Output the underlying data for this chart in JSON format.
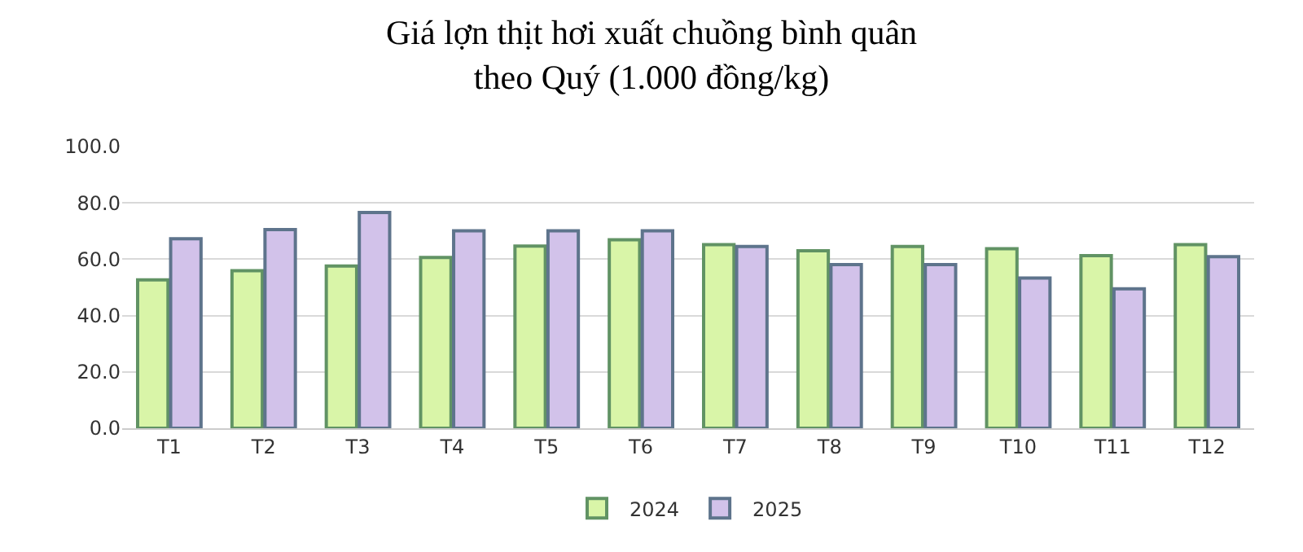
{
  "chart_data": {
    "type": "bar",
    "title": "Giá lợn thịt hơi xuất chuồng bình quân\ntheo Quý (1.000 đồng/kg)",
    "categories": [
      "T1",
      "T2",
      "T3",
      "T4",
      "T5",
      "T6",
      "T7",
      "T8",
      "T9",
      "T10",
      "T11",
      "T12"
    ],
    "series": [
      {
        "name": "2024",
        "color": "#d9f5a8",
        "values": [
          52.7,
          55.9,
          57.6,
          60.6,
          64.7,
          66.9,
          65.2,
          63.0,
          64.5,
          63.7,
          61.3,
          65.2
        ]
      },
      {
        "name": "2025",
        "color": "#d2c2ea",
        "values": [
          67.3,
          70.5,
          76.6,
          70.1,
          70.1,
          70.1,
          64.5,
          58.1,
          58.1,
          53.3,
          49.5,
          60.9
        ]
      }
    ],
    "ylim": [
      0,
      100
    ],
    "yticks": [
      {
        "value": 0,
        "label": "0.0"
      },
      {
        "value": 20,
        "label": "20.0"
      },
      {
        "value": 40,
        "label": "40.0"
      },
      {
        "value": 60,
        "label": "60.0"
      },
      {
        "value": 80,
        "label": "80.0"
      },
      {
        "value": 100,
        "label": "100.0"
      }
    ],
    "grid": "y",
    "legend": "bottom"
  }
}
